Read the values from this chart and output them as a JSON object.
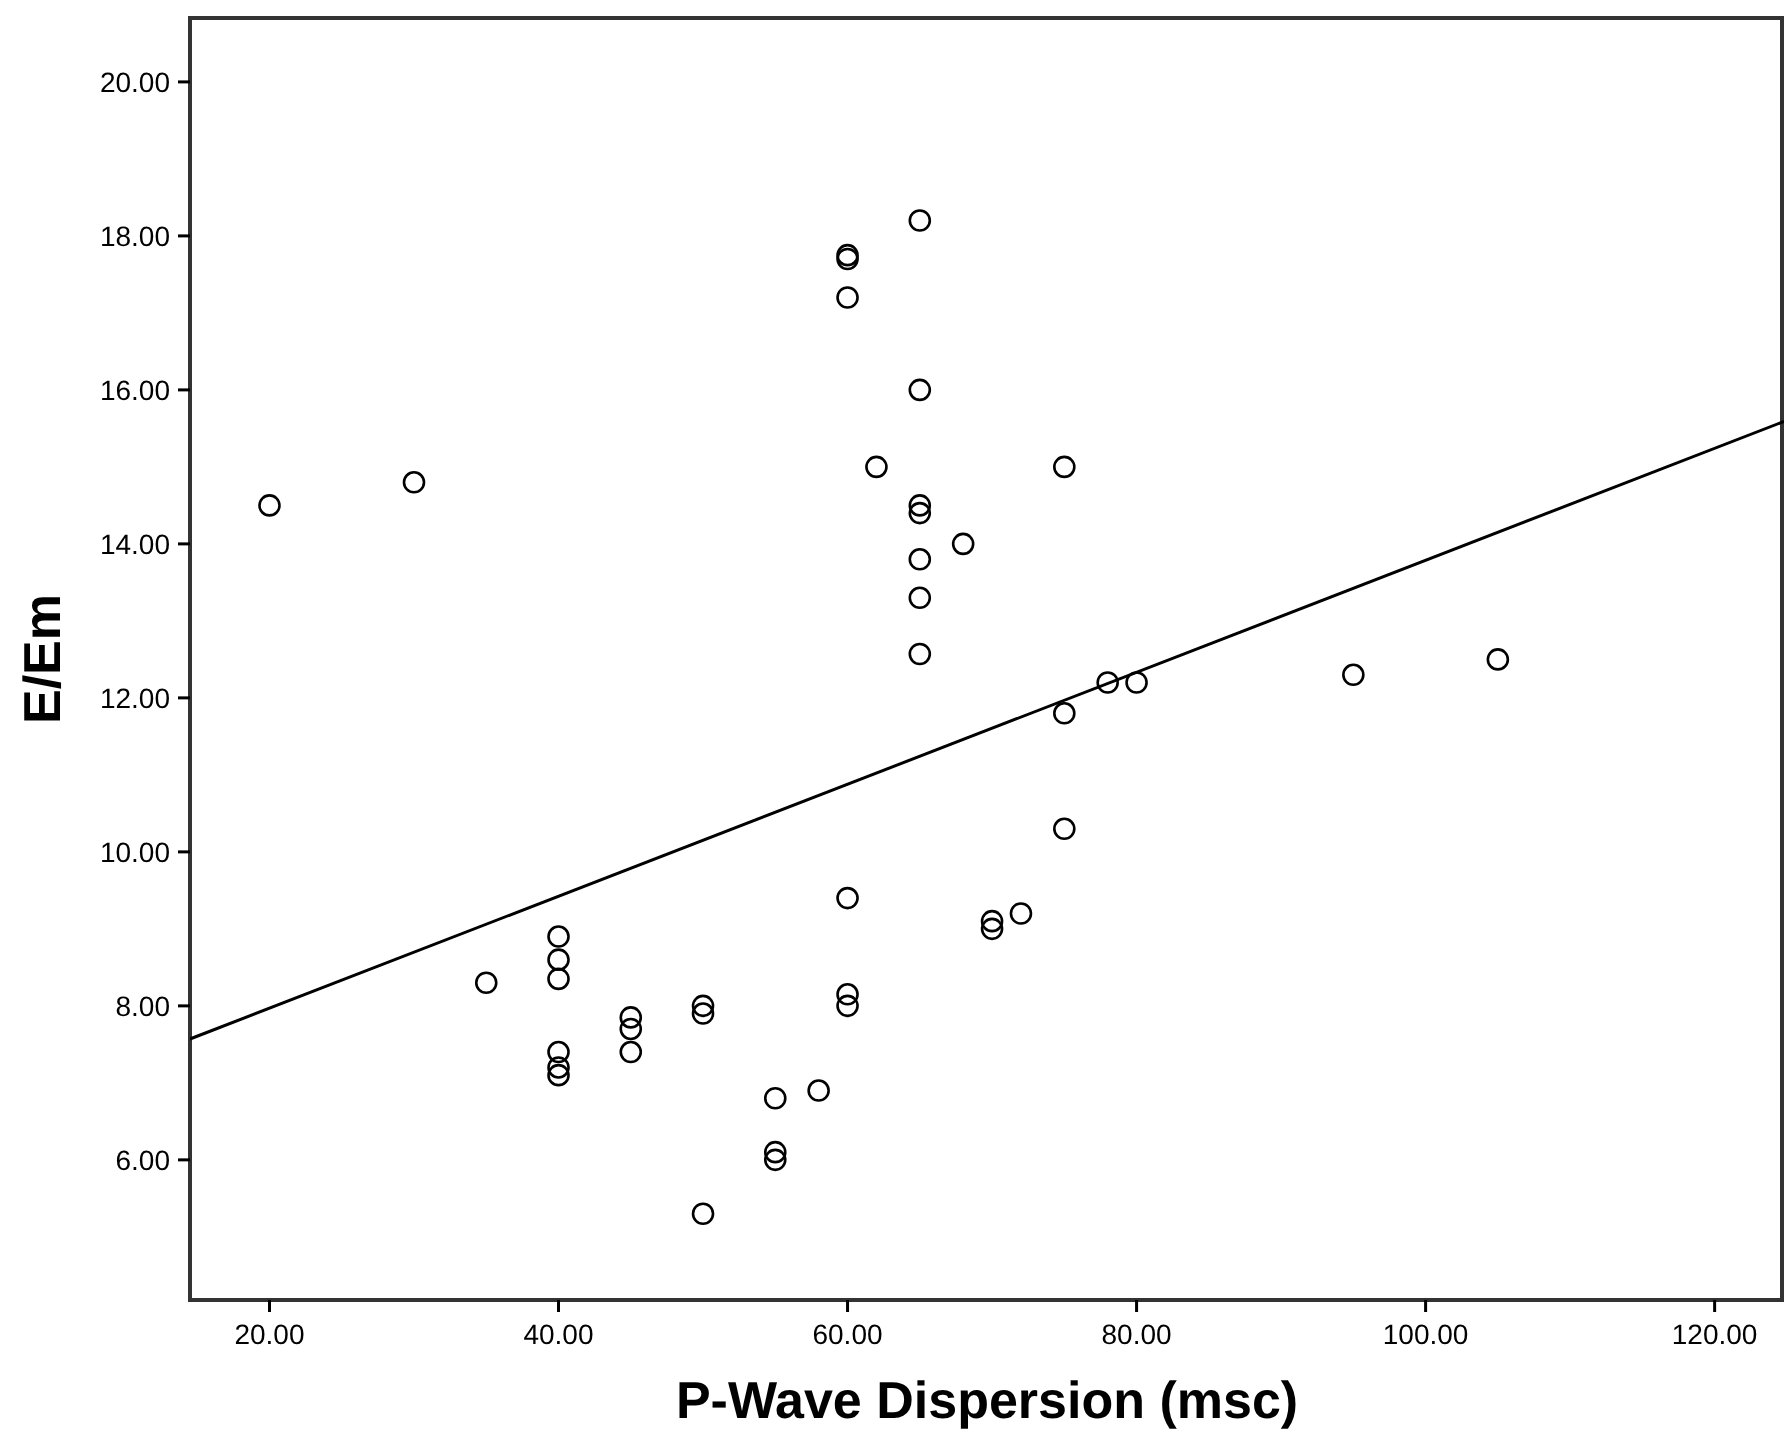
{
  "chart_data": {
    "type": "scatter",
    "xlabel": "P-Wave Dispersion (msc)",
    "ylabel": "E/Em",
    "xlim": [
      14.5,
      124.8
    ],
    "ylim": [
      4.18,
      20.83
    ],
    "xticks": [
      {
        "value": 20,
        "label": "20.00"
      },
      {
        "value": 40,
        "label": "40.00"
      },
      {
        "value": 60,
        "label": "60.00"
      },
      {
        "value": 80,
        "label": "80.00"
      },
      {
        "value": 100,
        "label": "100.00"
      },
      {
        "value": 120,
        "label": "120.00"
      }
    ],
    "yticks": [
      {
        "value": 6,
        "label": "6.00"
      },
      {
        "value": 8,
        "label": "8.00"
      },
      {
        "value": 10,
        "label": "10.00"
      },
      {
        "value": 12,
        "label": "12.00"
      },
      {
        "value": 14,
        "label": "14.00"
      },
      {
        "value": 16,
        "label": "16.00"
      },
      {
        "value": 18,
        "label": "18.00"
      },
      {
        "value": 20,
        "label": "20.00"
      }
    ],
    "grid": false,
    "marker": "circle",
    "series": [
      {
        "color": "#000000",
        "x": [
          20,
          30,
          60,
          60,
          60,
          65,
          65,
          62,
          65,
          65,
          68,
          65,
          65,
          65,
          75,
          105,
          95,
          78,
          80,
          75,
          75,
          70,
          70,
          72,
          60,
          60,
          60,
          35,
          40,
          40,
          40,
          40,
          40,
          40,
          45,
          45,
          45,
          50,
          50,
          55,
          58,
          55,
          55,
          50
        ],
        "values": [
          14.5,
          14.8,
          17.75,
          17.7,
          17.2,
          18.2,
          16,
          15,
          14.5,
          14.4,
          14,
          13.8,
          13.3,
          12.57,
          15,
          12.5,
          12.3,
          12.2,
          12.2,
          11.8,
          10.3,
          9.1,
          9.0,
          9.2,
          9.4,
          8.15,
          8.0,
          8.3,
          8.9,
          8.6,
          8.35,
          7.4,
          7.2,
          7.1,
          7.85,
          7.7,
          7.4,
          8.0,
          7.9,
          6.8,
          6.9,
          6.1,
          6.0,
          5.3
        ]
      },
      {
        "type": "line",
        "color": "#000000",
        "marker": "none",
        "line_style": "solid",
        "x": [
          14.5,
          124.8
        ],
        "values": [
          7.57,
          15.59
        ]
      }
    ]
  }
}
